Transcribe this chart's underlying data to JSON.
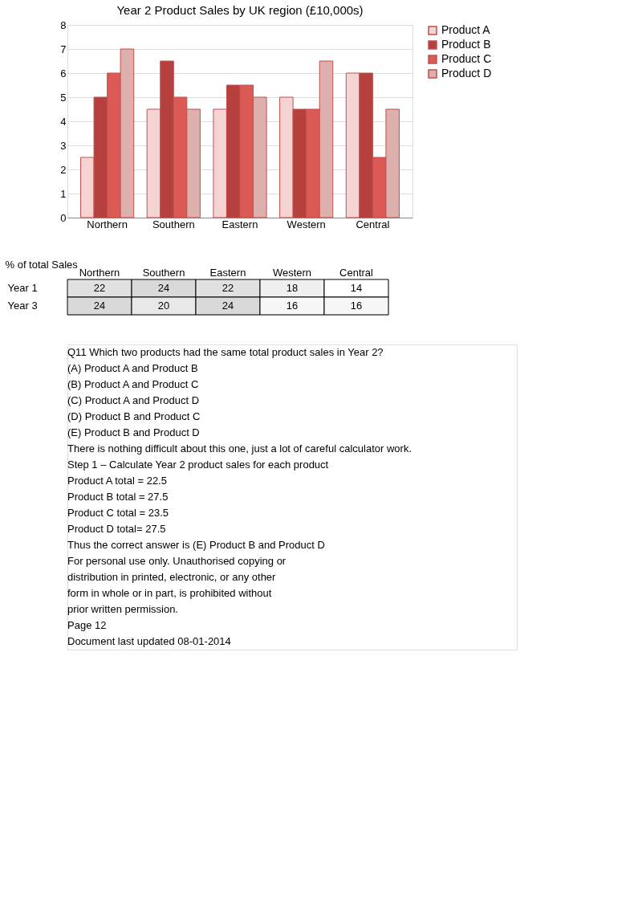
{
  "chart_data": [
    {
      "type": "bar",
      "title": "Year 2 Product  Sales by UK region (£10,000s)",
      "categories": [
        "Northern",
        "Southern",
        "Eastern",
        "Western",
        "Central"
      ],
      "series": [
        {
          "name": "Product A",
          "color": "#f4d3d2",
          "values": [
            2.5,
            4.5,
            4.5,
            5,
            6
          ]
        },
        {
          "name": "Product B",
          "color": "#b5403e",
          "values": [
            5,
            6.5,
            5.5,
            4.5,
            6
          ]
        },
        {
          "name": "Product C",
          "color": "#dc5a55",
          "values": [
            6,
            5,
            5.5,
            4.5,
            2.5
          ]
        },
        {
          "name": "Product D",
          "color": "#ddb0ae",
          "values": [
            7,
            4.5,
            5,
            6.5,
            4.5
          ]
        }
      ],
      "ylim": [
        0,
        8
      ],
      "yticks": [
        0,
        1,
        2,
        3,
        4,
        5,
        6,
        7,
        8
      ],
      "grid": "y",
      "legend": "right"
    },
    {
      "type": "heatmap",
      "ylabel": "% of total Sales",
      "categories": [
        "Northern",
        "Southern",
        "Eastern",
        "Western",
        "Central"
      ],
      "y_categories": [
        "Year 1",
        "Year 3"
      ],
      "cells": [
        [
          22,
          24,
          22,
          18,
          14
        ],
        [
          24,
          20,
          24,
          16,
          16
        ]
      ],
      "data_labels": true
    },
    {
      "type": "other",
      "annotations": [
        "Q11    Which two products had the same total product sales in Year 2?",
        "(A) Product A and Product B",
        "(B) Product A and Product C",
        "(C) Product A and Product D",
        "(D) Product B and Product C",
        "(E) Product B and Product D",
        "There is nothing difficult about this one, just a lot of careful calculator work.",
        "Step 1 – Calculate Year 2 product sales for each product",
        "Product A total = 22.5",
        "Product B total = 27.5",
        "Product C total = 23.5",
        "Product D total= 27.5",
        "Thus the correct answer is (E) Product B and Product D",
        "For personal use only. Unauthorised copying or",
        "distribution in printed, electronic, or any other",
        "form in whole or in part, is prohibited without",
        "prior written permission.",
        "Page 12",
        "Document last updated 08-01-2014"
      ]
    }
  ]
}
